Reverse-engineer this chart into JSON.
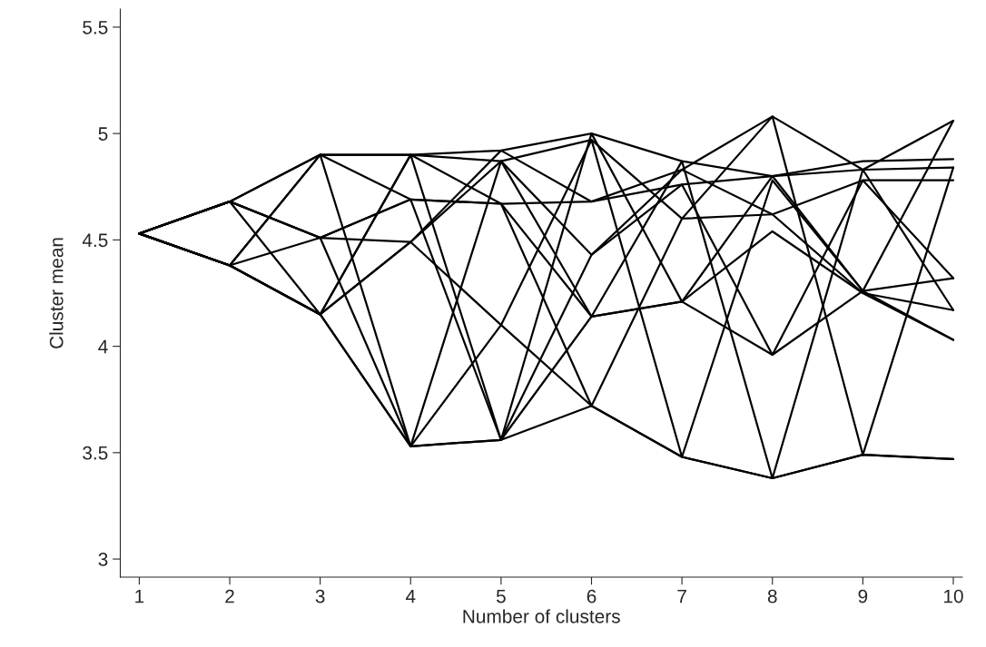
{
  "chart_data": {
    "type": "line",
    "xlabel": "Number of clusters",
    "ylabel": "Cluster mean",
    "x": [
      1,
      2,
      3,
      4,
      5,
      6,
      7,
      8,
      9,
      10
    ],
    "xlim": [
      0.79,
      10.1
    ],
    "xticks": [
      1,
      2,
      3,
      4,
      5,
      6,
      7,
      8,
      9,
      10
    ],
    "ylim": [
      2.915,
      5.585
    ],
    "yticks": [
      3,
      3.5,
      4,
      4.5,
      5,
      5.5
    ],
    "grid": false,
    "marker": "none",
    "line_style": "solid",
    "series": [
      {
        "color": "#000000",
        "values": [
          4.53,
          4.68,
          4.51,
          4.69,
          4.67,
          4.68,
          4.76,
          4.8,
          4.83,
          4.84
        ]
      },
      {
        "color": "#000000",
        "values": [
          4.53,
          4.68,
          4.9,
          4.9,
          4.92,
          5.0,
          4.87,
          4.8,
          4.87,
          4.88
        ]
      },
      {
        "color": "#000000",
        "values": [
          4.53,
          4.38,
          4.15,
          4.49,
          4.87,
          4.97,
          4.6,
          4.62,
          4.78,
          4.78
        ]
      },
      {
        "color": "#000000",
        "values": [
          4.53,
          4.38,
          4.15,
          3.53,
          3.56,
          3.72,
          3.48,
          3.38,
          3.49,
          3.47
        ]
      },
      {
        "color": "#000000",
        "values": [
          4.53,
          4.38,
          4.9,
          4.9,
          4.87,
          4.43,
          4.83,
          5.08,
          4.83,
          5.06
        ]
      },
      {
        "color": "#000000",
        "values": [
          4.53,
          4.38,
          4.15,
          4.49,
          4.1,
          3.72,
          3.48,
          3.38,
          3.49,
          3.47
        ]
      },
      {
        "color": "#000000",
        "values": [
          4.53,
          4.68,
          4.51,
          4.69,
          4.67,
          4.14,
          4.21,
          3.96,
          4.26,
          4.32
        ]
      },
      {
        "color": "#000000",
        "values": [
          4.53,
          4.38,
          4.15,
          3.53,
          3.56,
          4.14,
          4.21,
          4.54,
          4.25,
          4.17
        ]
      },
      {
        "color": "#000000",
        "values": [
          4.53,
          4.68,
          4.51,
          3.53,
          4.1,
          4.97,
          3.48,
          4.78,
          4.26,
          4.03
        ]
      },
      {
        "color": "#000000",
        "values": [
          4.53,
          4.38,
          4.9,
          4.69,
          3.56,
          4.43,
          4.76,
          3.96,
          4.78,
          4.32
        ]
      },
      {
        "color": "#000000",
        "values": [
          4.53,
          4.68,
          4.15,
          4.9,
          4.67,
          3.72,
          4.6,
          5.08,
          3.49,
          4.84
        ]
      },
      {
        "color": "#000000",
        "values": [
          4.53,
          4.38,
          4.51,
          4.49,
          4.92,
          4.68,
          4.83,
          4.62,
          4.25,
          4.03
        ]
      },
      {
        "color": "#000000",
        "values": [
          4.53,
          4.68,
          4.9,
          3.53,
          4.87,
          4.14,
          4.87,
          3.38,
          4.83,
          4.17
        ]
      },
      {
        "color": "#000000",
        "values": [
          4.53,
          4.38,
          4.15,
          4.9,
          3.56,
          5.0,
          4.21,
          4.8,
          4.26,
          5.06
        ]
      }
    ]
  }
}
